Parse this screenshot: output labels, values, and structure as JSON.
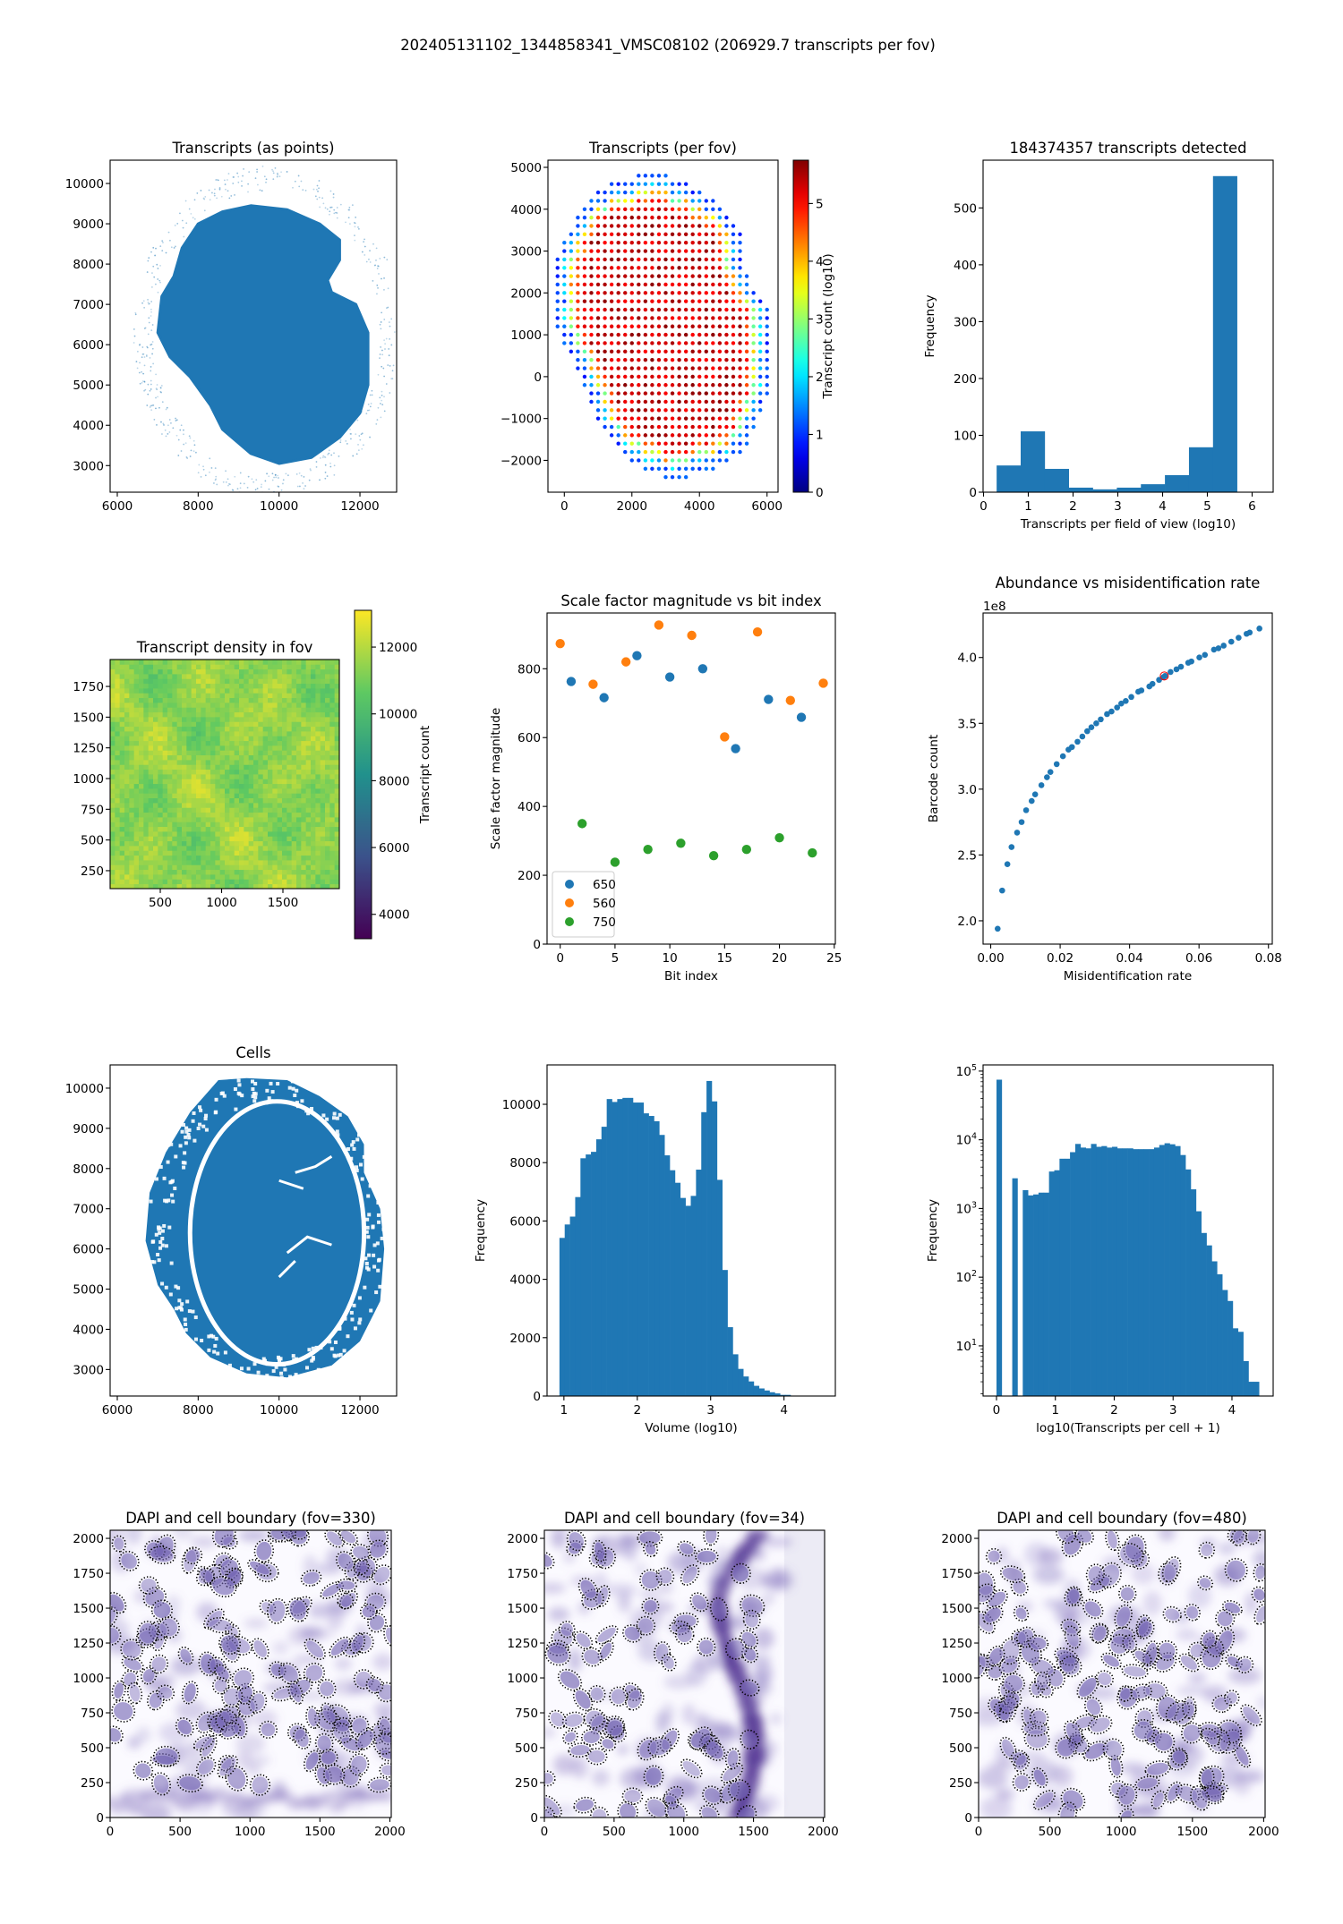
{
  "figure": {
    "title": "202405131102_1344858341_VMSC08102 (206929.7 transcripts per fov)"
  },
  "colors": {
    "blue": "#1f77b4",
    "orange": "#ff7f0e",
    "green": "#2ca02c",
    "highlight": "#ff0000",
    "nucleus": "#6e5fb0"
  },
  "chart_data": [
    {
      "id": "transcripts-points",
      "type": "scatter",
      "title": "Transcripts (as points)",
      "xlabel": "",
      "ylabel": "",
      "xlim": [
        5823,
        12907
      ],
      "ylim": [
        2340,
        10578
      ],
      "xticks": [
        "6000",
        "8000",
        "10000",
        "12000"
      ],
      "yticks": [
        "3000",
        "4000",
        "5000",
        "6000",
        "7000",
        "8000",
        "9000",
        "10000"
      ]
    },
    {
      "id": "transcripts-per-fov",
      "type": "scatter",
      "title": "Transcripts (per fov)",
      "xlabel": "",
      "ylabel": "",
      "xlim": [
        -485,
        6326
      ],
      "ylim": [
        -2760,
        5171
      ],
      "xticks": [
        "0",
        "2000",
        "4000",
        "6000"
      ],
      "yticks": [
        "−2000",
        "−1000",
        "0",
        "1000",
        "2000",
        "3000",
        "4000",
        "5000"
      ],
      "grid_step": 200,
      "rows_y_xmin_xmax": [
        [
          4800,
          2200,
          3000
        ],
        [
          4600,
          1400,
          3600
        ],
        [
          4400,
          1000,
          4000
        ],
        [
          4200,
          800,
          4400
        ],
        [
          4000,
          600,
          4600
        ],
        [
          3800,
          400,
          4800
        ],
        [
          3600,
          400,
          5000
        ],
        [
          3400,
          200,
          5200
        ],
        [
          3200,
          0,
          5200
        ],
        [
          3000,
          0,
          5200
        ],
        [
          2800,
          -200,
          5200
        ],
        [
          2600,
          -200,
          5200
        ],
        [
          2400,
          -200,
          5400
        ],
        [
          2200,
          -200,
          5400
        ],
        [
          2000,
          -200,
          5600
        ],
        [
          1800,
          -200,
          5800
        ],
        [
          1600,
          -200,
          6000
        ],
        [
          1400,
          -200,
          6000
        ],
        [
          1200,
          -200,
          6000
        ],
        [
          1000,
          0,
          6000
        ],
        [
          800,
          0,
          6000
        ],
        [
          600,
          200,
          6000
        ],
        [
          400,
          400,
          6000
        ],
        [
          200,
          400,
          6000
        ],
        [
          0,
          600,
          6000
        ],
        [
          -200,
          600,
          6000
        ],
        [
          -400,
          800,
          6000
        ],
        [
          -600,
          800,
          5800
        ],
        [
          -800,
          1000,
          5800
        ],
        [
          -1000,
          1000,
          5600
        ],
        [
          -1200,
          1200,
          5600
        ],
        [
          -1400,
          1400,
          5400
        ],
        [
          -1600,
          1600,
          5400
        ],
        [
          -1800,
          1800,
          5200
        ],
        [
          -2000,
          2000,
          4800
        ],
        [
          -2200,
          2400,
          4400
        ],
        [
          -2400,
          3000,
          3600
        ]
      ],
      "colorbar": {
        "label": "Transcript count (log10)",
        "range": [
          0,
          5.75
        ],
        "ticks": [
          "0",
          "1",
          "2",
          "3",
          "4",
          "5"
        ],
        "cmap": "jet"
      }
    },
    {
      "id": "transcripts-detected-hist",
      "type": "bar",
      "title": "184374357 transcripts detected",
      "xlabel": "Transcripts per field of view (log10)",
      "ylabel": "Frequency",
      "xlim": [
        -0.01,
        6.47
      ],
      "ylim": [
        0,
        584
      ],
      "xticks": [
        "0",
        "1",
        "2",
        "3",
        "4",
        "5",
        "6"
      ],
      "yticks": [
        "0",
        "100",
        "200",
        "300",
        "400",
        "500"
      ],
      "bin_start": 0.293,
      "bin_width": 0.537,
      "counts": [
        47,
        107,
        41,
        8,
        5,
        8,
        14,
        30,
        79,
        556
      ]
    },
    {
      "id": "transcript-density",
      "type": "heatmap",
      "title": "Transcript density in fov",
      "xlabel": "",
      "ylabel": "",
      "xlim": [
        91,
        1960
      ],
      "ylim": [
        104,
        1969
      ],
      "xticks": [
        "500",
        "1000",
        "1500"
      ],
      "yticks": [
        "250",
        "500",
        "750",
        "1000",
        "1250",
        "1500",
        "1750"
      ],
      "value_range": [
        9800,
        12600
      ],
      "colorbar": {
        "label": "Transcript count",
        "range": [
          3270,
          13100
        ],
        "ticks": [
          "4000",
          "6000",
          "8000",
          "10000",
          "12000"
        ],
        "cmap": "viridis"
      }
    },
    {
      "id": "scale-factor",
      "type": "scatter",
      "title": "Scale factor magnitude vs bit index",
      "xlabel": "Bit index",
      "ylabel": "Scale factor magnitude",
      "xlim": [
        -1.2,
        25.1
      ],
      "ylim": [
        0,
        962
      ],
      "xticks": [
        "0",
        "5",
        "10",
        "15",
        "20",
        "25"
      ],
      "yticks": [
        "0",
        "200",
        "400",
        "600",
        "800"
      ],
      "legend": "lower-left",
      "series": [
        {
          "name": "650",
          "color": "#1f77b4",
          "points": [
            [
              1,
              763
            ],
            [
              4,
              716
            ],
            [
              7,
              838
            ],
            [
              10,
              776
            ],
            [
              13,
              800
            ],
            [
              16,
              568
            ],
            [
              19,
              711
            ],
            [
              22,
              659
            ]
          ]
        },
        {
          "name": "560",
          "color": "#ff7f0e",
          "points": [
            [
              0,
              873
            ],
            [
              3,
              755
            ],
            [
              6,
              820
            ],
            [
              9,
              927
            ],
            [
              12,
              897
            ],
            [
              15,
              602
            ],
            [
              18,
              907
            ],
            [
              21,
              708
            ],
            [
              24,
              758
            ]
          ]
        },
        {
          "name": "750",
          "color": "#2ca02c",
          "points": [
            [
              2,
              350
            ],
            [
              5,
              238
            ],
            [
              8,
              275
            ],
            [
              11,
              293
            ],
            [
              14,
              257
            ],
            [
              17,
              275
            ],
            [
              20,
              309
            ],
            [
              23,
              265
            ]
          ]
        }
      ]
    },
    {
      "id": "abundance-vs-misid",
      "type": "scatter",
      "title": "Abundance vs misidentification rate",
      "xlabel": "Misidentification rate",
      "ylabel": "Barcode count",
      "offset_label": "1e8",
      "xlim": [
        -0.0022,
        0.0811
      ],
      "ylim": [
        1.823,
        4.338
      ],
      "xticks": [
        "0.00",
        "0.02",
        "0.04",
        "0.06",
        "0.08"
      ],
      "yticks": [
        "2.0",
        "2.5",
        "3.0",
        "3.5",
        "4.0"
      ],
      "points": [
        [
          0.002,
          1.94
        ],
        [
          0.0033,
          2.23
        ],
        [
          0.0048,
          2.43
        ],
        [
          0.006,
          2.56
        ],
        [
          0.0076,
          2.67
        ],
        [
          0.0089,
          2.75
        ],
        [
          0.0102,
          2.84
        ],
        [
          0.0118,
          2.91
        ],
        [
          0.0128,
          2.96
        ],
        [
          0.0146,
          3.03
        ],
        [
          0.0162,
          3.09
        ],
        [
          0.0172,
          3.13
        ],
        [
          0.019,
          3.19
        ],
        [
          0.0208,
          3.25
        ],
        [
          0.0224,
          3.3
        ],
        [
          0.0234,
          3.32
        ],
        [
          0.025,
          3.36
        ],
        [
          0.0264,
          3.4
        ],
        [
          0.0278,
          3.44
        ],
        [
          0.029,
          3.47
        ],
        [
          0.0304,
          3.5
        ],
        [
          0.0317,
          3.53
        ],
        [
          0.0335,
          3.57
        ],
        [
          0.0348,
          3.59
        ],
        [
          0.0364,
          3.62
        ],
        [
          0.0376,
          3.65
        ],
        [
          0.0389,
          3.67
        ],
        [
          0.0405,
          3.7
        ],
        [
          0.0425,
          3.74
        ],
        [
          0.0434,
          3.75
        ],
        [
          0.0457,
          3.78
        ],
        [
          0.0466,
          3.8
        ],
        [
          0.0485,
          3.83
        ],
        [
          0.0497,
          3.85
        ],
        [
          0.0502,
          3.86
        ],
        [
          0.0518,
          3.89
        ],
        [
          0.0535,
          3.91
        ],
        [
          0.0548,
          3.93
        ],
        [
          0.0569,
          3.96
        ],
        [
          0.0578,
          3.97
        ],
        [
          0.0601,
          4.0
        ],
        [
          0.0617,
          4.02
        ],
        [
          0.0643,
          4.06
        ],
        [
          0.0656,
          4.07
        ],
        [
          0.0671,
          4.09
        ],
        [
          0.0693,
          4.12
        ],
        [
          0.0714,
          4.15
        ],
        [
          0.0737,
          4.18
        ],
        [
          0.0746,
          4.19
        ],
        [
          0.0774,
          4.22
        ]
      ],
      "highlight_point": [
        0.05,
        3.86
      ]
    },
    {
      "id": "cells",
      "type": "scatter",
      "title": "Cells",
      "xlabel": "",
      "ylabel": "",
      "xlim": [
        5823,
        12907
      ],
      "ylim": [
        2340,
        10578
      ],
      "xticks": [
        "6000",
        "8000",
        "10000",
        "12000"
      ],
      "yticks": [
        "3000",
        "4000",
        "5000",
        "6000",
        "7000",
        "8000",
        "9000",
        "10000"
      ]
    },
    {
      "id": "volume-hist",
      "type": "bar",
      "title": "",
      "xlabel": "Volume (log10)",
      "ylabel": "Frequency",
      "xlim": [
        0.77,
        4.7
      ],
      "ylim": [
        0,
        11350
      ],
      "xticks": [
        "1",
        "2",
        "3",
        "4"
      ],
      "yticks": [
        "0",
        "2000",
        "4000",
        "6000",
        "8000",
        "10000"
      ],
      "bin_start": 0.939,
      "bin_width": 0.0716,
      "counts": [
        5420,
        5880,
        6150,
        6820,
        8150,
        8280,
        8370,
        8800,
        9230,
        10180,
        10080,
        10180,
        10220,
        10220,
        10060,
        10060,
        9690,
        9600,
        9420,
        8950,
        8250,
        7740,
        7310,
        6790,
        6520,
        6860,
        7760,
        9730,
        10800,
        10100,
        7410,
        4320,
        2360,
        1430,
        930,
        670,
        500,
        350,
        260,
        190,
        130,
        90,
        40,
        40
      ]
    },
    {
      "id": "transcripts-per-cell-hist",
      "type": "bar",
      "title": "",
      "xlabel": "log10(Transcripts per cell + 1)",
      "ylabel": "Frequency",
      "yscale": "log",
      "xlim": [
        -0.228,
        4.7
      ],
      "ylim": [
        1.86,
        123000
      ],
      "xticks": [
        "0",
        "1",
        "2",
        "3",
        "4"
      ],
      "yticks": [
        "10^1",
        "10^2",
        "10^3",
        "10^4",
        "10^5"
      ],
      "bin_start": 0,
      "bin_width": 0.0892,
      "counts": [
        75000,
        0,
        0,
        2750,
        0,
        1850,
        1550,
        1600,
        1700,
        1700,
        3450,
        3600,
        5300,
        5300,
        6600,
        8700,
        7700,
        7500,
        8700,
        7900,
        8100,
        7700,
        7900,
        7500,
        7500,
        7500,
        7300,
        7300,
        7300,
        7300,
        7700,
        8400,
        8900,
        8600,
        8100,
        6000,
        3700,
        1900,
        910,
        440,
        290,
        170,
        110,
        65,
        45,
        18,
        16,
        6,
        3,
        3
      ]
    },
    {
      "id": "dapi-fov-330",
      "type": "heatmap",
      "title": "DAPI and cell boundary (fov=330)",
      "xlabel": "",
      "ylabel": "",
      "xlim": [
        0,
        2010
      ],
      "ylim": [
        0,
        2058
      ],
      "xticks": [
        "0",
        "500",
        "1000",
        "1500",
        "2000"
      ],
      "yticks": [
        "0",
        "250",
        "500",
        "750",
        "1000",
        "1250",
        "1500",
        "1750",
        "2000"
      ]
    },
    {
      "id": "dapi-fov-34",
      "type": "heatmap",
      "title": "DAPI and cell boundary (fov=34)",
      "xlabel": "",
      "ylabel": "",
      "xlim": [
        0,
        2010
      ],
      "ylim": [
        0,
        2058
      ],
      "xticks": [
        "0",
        "500",
        "1000",
        "1500",
        "2000"
      ],
      "yticks": [
        "0",
        "250",
        "500",
        "750",
        "1000",
        "1250",
        "1500",
        "1750",
        "2000"
      ]
    },
    {
      "id": "dapi-fov-480",
      "type": "heatmap",
      "title": "DAPI and cell boundary (fov=480)",
      "xlabel": "",
      "ylabel": "",
      "xlim": [
        0,
        2010
      ],
      "ylim": [
        0,
        2058
      ],
      "xticks": [
        "0",
        "500",
        "1000",
        "1500",
        "2000"
      ],
      "yticks": [
        "0",
        "250",
        "500",
        "750",
        "1000",
        "1250",
        "1500",
        "1750",
        "2000"
      ]
    }
  ]
}
